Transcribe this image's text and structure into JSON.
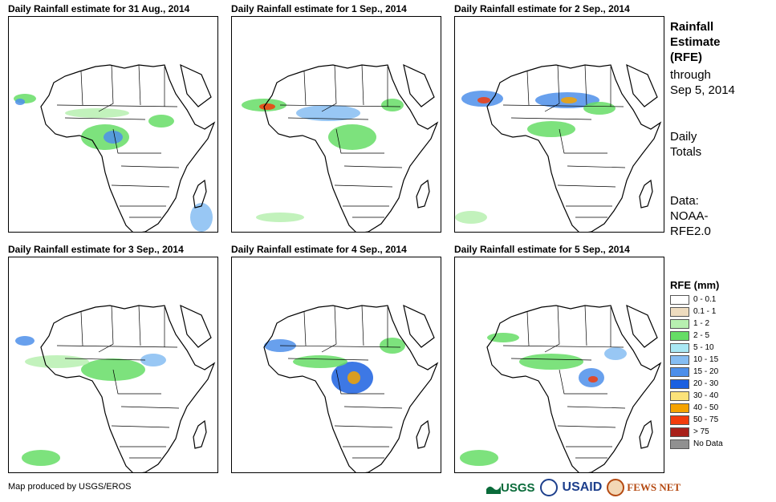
{
  "panels": [
    {
      "title": "Daily Rainfall estimate for 31 Aug., 2014"
    },
    {
      "title": "Daily Rainfall estimate for 1 Sep., 2014"
    },
    {
      "title": "Daily Rainfall estimate for 2 Sep., 2014"
    },
    {
      "title": "Daily Rainfall estimate for 3 Sep., 2014"
    },
    {
      "title": "Daily Rainfall estimate for 4 Sep., 2014"
    },
    {
      "title": "Daily Rainfall estimate for 5 Sep., 2014"
    }
  ],
  "sidebar": {
    "title_lines": [
      "Rainfall",
      "Estimate",
      "(RFE)"
    ],
    "through_lines": [
      "through",
      "Sep 5, 2014"
    ],
    "totals_lines": [
      "Daily",
      "Totals"
    ],
    "data_lines": [
      "Data:",
      "NOAA-",
      "RFE2.0"
    ]
  },
  "legend": {
    "title": "RFE (mm)",
    "items": [
      {
        "label": "0 - 0.1",
        "color": "#ffffff"
      },
      {
        "label": "0.1 - 1",
        "color": "#eedcbf"
      },
      {
        "label": "1 - 2",
        "color": "#b7f0b0"
      },
      {
        "label": "2 - 5",
        "color": "#66dd66"
      },
      {
        "label": "5 - 10",
        "color": "#a9e8f4"
      },
      {
        "label": "10 - 15",
        "color": "#86bdf2"
      },
      {
        "label": "15 - 20",
        "color": "#4d8fea"
      },
      {
        "label": "20 - 30",
        "color": "#1b60e0"
      },
      {
        "label": "30 - 40",
        "color": "#fbe37a"
      },
      {
        "label": "40 - 50",
        "color": "#f5a300"
      },
      {
        "label": "50 - 75",
        "color": "#f23c0c"
      },
      {
        "label": "> 75",
        "color": "#a8201a"
      },
      {
        "label": "No Data",
        "color": "#909090"
      }
    ]
  },
  "footer": {
    "credit": "Map produced by USGS/EROS",
    "logo_usgs": "USGS",
    "logo_usaid": "USAID",
    "logo_fews": "FEWS NET"
  }
}
